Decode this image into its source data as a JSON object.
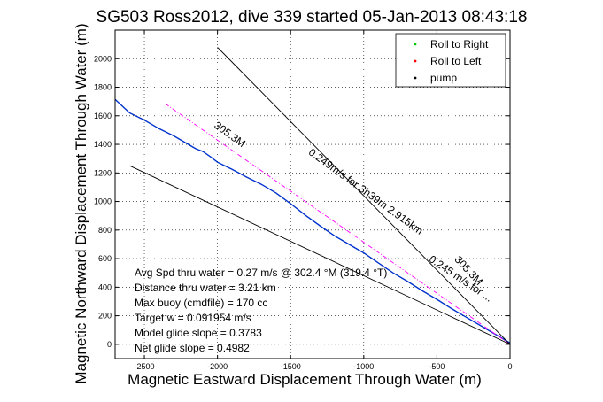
{
  "chart_data": {
    "type": "line",
    "title": "SG503 Ross2012, dive 339 started 05-Jan-2013 08:43:18",
    "xlabel": "Magnetic Eastward Displacement Through Water (m)",
    "ylabel": "Magnetic Northward Displacement Through Water (m)",
    "xlim": [
      -2700,
      0
    ],
    "ylim": [
      -100,
      2200
    ],
    "xticks": [
      -2500,
      -2000,
      -1500,
      -1000,
      -500,
      0
    ],
    "yticks": [
      0,
      200,
      400,
      600,
      800,
      1000,
      1200,
      1400,
      1600,
      1800,
      2000
    ],
    "grid": true,
    "legend_position": "top-right",
    "legend": [
      {
        "label": "Roll to Right",
        "marker": ".",
        "color": "#00cc00"
      },
      {
        "label": "Roll to Left",
        "marker": ".",
        "color": "#ff0000"
      },
      {
        "label": "pump",
        "marker": ".",
        "color": "#000000"
      }
    ],
    "series": [
      {
        "style": "track",
        "color": "#0033cc",
        "x": [
          0,
          -100,
          -200,
          -300,
          -400,
          -500,
          -600,
          -700,
          -800,
          -900,
          -1000,
          -1100,
          -1200,
          -1300,
          -1400,
          -1500,
          -1600,
          -1700,
          -1800,
          -1900,
          -2000,
          -2050,
          -2100,
          -2150,
          -2200,
          -2300,
          -2400,
          -2500,
          -2600,
          -2700
        ],
        "y": [
          10,
          70,
          130,
          190,
          250,
          315,
          375,
          440,
          500,
          570,
          640,
          700,
          760,
          830,
          905,
          985,
          1060,
          1120,
          1170,
          1225,
          1275,
          1315,
          1350,
          1370,
          1400,
          1460,
          1510,
          1570,
          1620,
          1715
        ]
      },
      {
        "style": "dashdot",
        "color": "#ff00ff",
        "x": [
          0,
          -2350
        ],
        "y": [
          0,
          1680
        ]
      },
      {
        "style": "solid",
        "color": "#000000",
        "x": [
          0,
          -2000
        ],
        "y": [
          0,
          2080
        ]
      },
      {
        "style": "solid",
        "color": "#000000",
        "x": [
          0,
          -2600
        ],
        "y": [
          0,
          1250
        ]
      }
    ],
    "annotations": [
      {
        "text": "305.3M",
        "x": -1930,
        "y": 1450,
        "angle": 36
      },
      {
        "text": "0.249m/s for 3h39m 2.915km",
        "x": -1000,
        "y": 1050,
        "angle": 36
      },
      {
        "text": "305.3M",
        "x": -300,
        "y": 500,
        "angle": 47
      },
      {
        "text": "0.245 m/s for ...",
        "x": -350,
        "y": 440,
        "angle": 34
      }
    ],
    "stats": [
      "Avg Spd thru water =  0.27 m/s @ 302.4 °M (319.4 °T)",
      "Distance thru water =  3.21 km",
      "Max buoy (cmdfile) = 170 cc",
      "Target w = 0.091954 m/s",
      "Model glide slope = 0.3783",
      "Net glide slope = 0.4982"
    ]
  }
}
